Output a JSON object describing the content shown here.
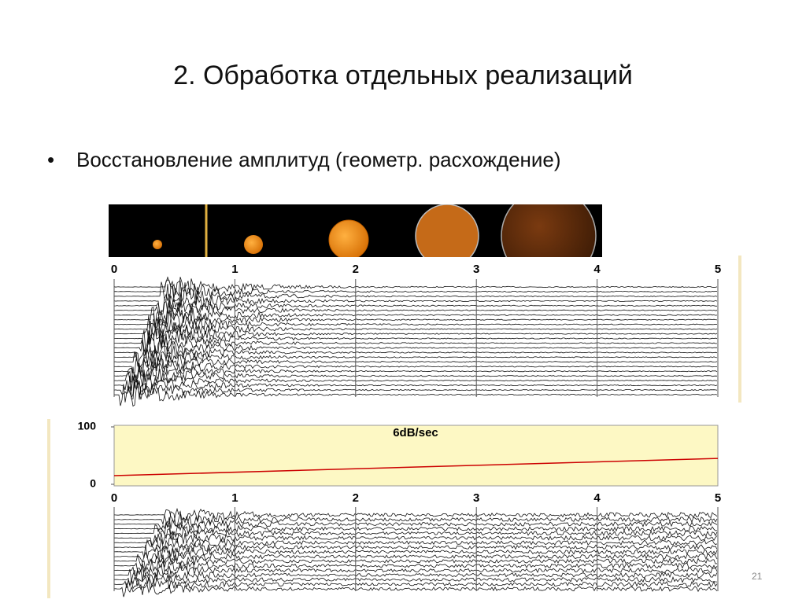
{
  "title": "2. Обработка отдельных реализаций",
  "bullet": "Восстановление амплитуд (геометр. расхождение)",
  "page_number": "21",
  "time_axis": {
    "ticks": [
      0,
      1,
      2,
      3,
      4,
      5
    ]
  },
  "gain_chart": {
    "title": "6dB/sec",
    "ylim": [
      0,
      100
    ],
    "yticks": [
      0,
      100
    ],
    "xlim": [
      0,
      5
    ],
    "xticks": [
      0,
      1,
      2,
      3,
      4,
      5
    ],
    "color": "#cc0000",
    "x": [
      0,
      5
    ],
    "values": [
      15,
      45
    ]
  }
}
